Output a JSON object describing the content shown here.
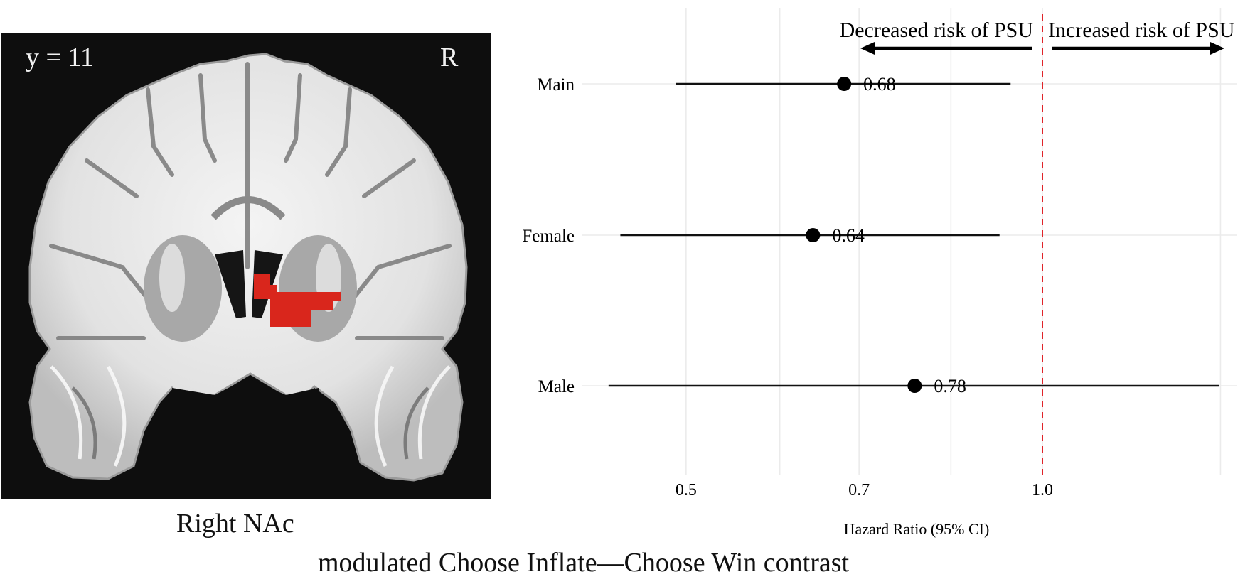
{
  "brain_panel": {
    "slice_coordinate": "y = 11",
    "orientation_label": "R",
    "region_label": "Right NAc",
    "highlight_color": "#d9261c",
    "background_color": "#0e0e0e"
  },
  "caption": "modulated Choose Inflate—Choose Win contrast",
  "chart_data": {
    "type": "forest",
    "title": "",
    "xlabel": "Hazard Ratio (95% CI)",
    "ylabel": "",
    "x_scale": "log",
    "xlim": [
      0.4,
      1.46
    ],
    "x_ticks": [
      0.5,
      0.7,
      1.0
    ],
    "x_tick_labels": [
      "0.5",
      "0.7",
      "1.0"
    ],
    "x_minor_gridlines": [
      0.6,
      0.837,
      1.414
    ],
    "grid": true,
    "reference_line": {
      "x": 1.0,
      "style": "dashed",
      "color": "#e0242a"
    },
    "annotations": {
      "left": "Decreased risk of PSU",
      "right": "Increased risk of PSU"
    },
    "categories": [
      "Main",
      "Female",
      "Male"
    ],
    "series": [
      {
        "name": "Hazard Ratio",
        "values": [
          0.68,
          0.64,
          0.78
        ],
        "value_labels": [
          "0.68",
          "0.64",
          "0.78"
        ],
        "ci_lower": [
          0.49,
          0.44,
          0.43
        ],
        "ci_upper": [
          0.94,
          0.92,
          1.41
        ]
      }
    ],
    "legend": null
  }
}
